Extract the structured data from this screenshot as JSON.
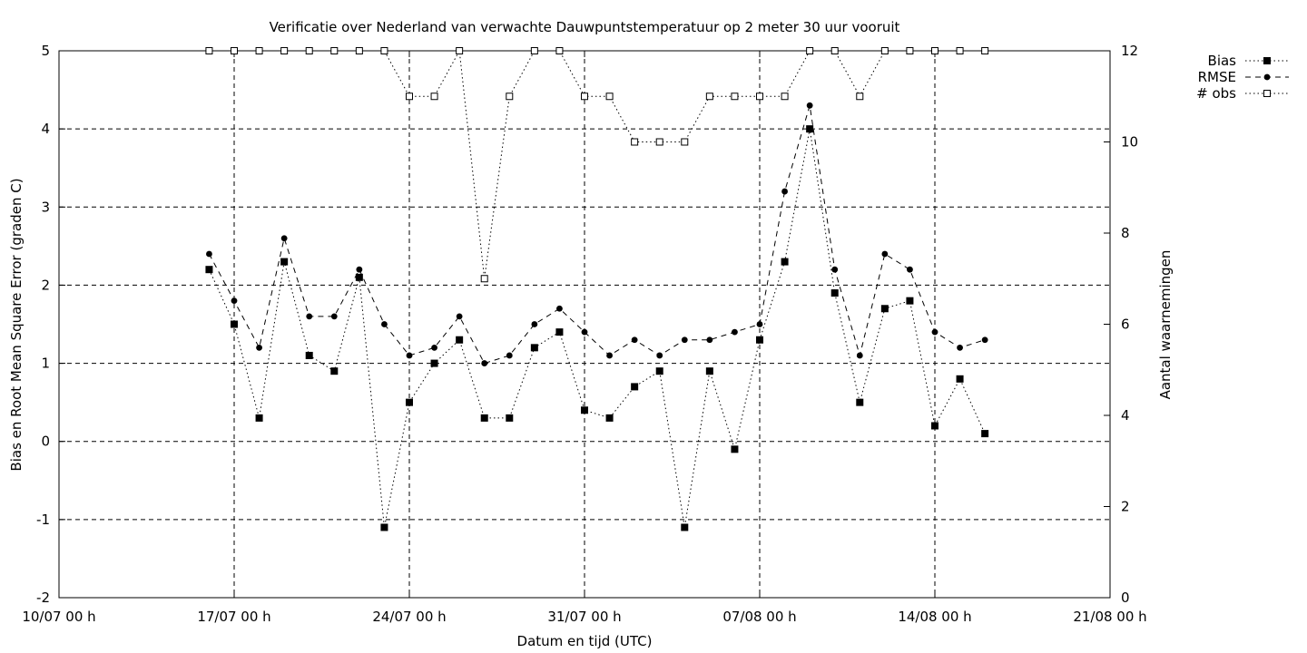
{
  "chart_data": {
    "type": "line",
    "title": "Verificatie over Nederland van verwachte Dauwpuntstemperatuur op 2 meter 30 uur vooruit",
    "xlabel": "Datum en tijd (UTC)",
    "ylabel": "Bias en Root Mean Square Error (graden C)",
    "y2label": "Aantal waarnemingen",
    "xlim": [
      "2008-07-10",
      "2008-08-21"
    ],
    "ylim": [
      -2,
      5
    ],
    "y2lim": [
      0,
      12
    ],
    "x_ticks": [
      "10/07 00 h",
      "17/07 00 h",
      "24/07 00 h",
      "31/07 00 h",
      "07/08 00 h",
      "14/08 00 h",
      "21/08 00 h"
    ],
    "y_ticks": [
      "-2",
      "-1",
      "0",
      "1",
      "2",
      "3",
      "4",
      "5"
    ],
    "y2_ticks": [
      "0",
      "2",
      "4",
      "6",
      "8",
      "10",
      "12"
    ],
    "grid": true,
    "legend_position": "top-right-outside",
    "x": [
      "2008-07-16",
      "2008-07-17",
      "2008-07-18",
      "2008-07-19",
      "2008-07-20",
      "2008-07-21",
      "2008-07-22",
      "2008-07-23",
      "2008-07-24",
      "2008-07-25",
      "2008-07-26",
      "2008-07-27",
      "2008-07-28",
      "2008-07-29",
      "2008-07-30",
      "2008-07-31",
      "2008-08-01",
      "2008-08-02",
      "2008-08-03",
      "2008-08-04",
      "2008-08-05",
      "2008-08-06",
      "2008-08-07",
      "2008-08-08",
      "2008-08-09",
      "2008-08-10",
      "2008-08-11",
      "2008-08-12",
      "2008-08-13",
      "2008-08-14",
      "2008-08-15",
      "2008-08-16"
    ],
    "series": [
      {
        "name": "Bias",
        "axis": "left",
        "values": [
          2.2,
          1.5,
          0.3,
          2.3,
          1.1,
          0.9,
          2.1,
          -1.1,
          0.5,
          1.0,
          1.3,
          0.3,
          0.3,
          1.2,
          1.4,
          0.4,
          0.3,
          0.7,
          0.9,
          -1.1,
          0.9,
          -0.1,
          1.3,
          2.3,
          4.0,
          1.9,
          0.5,
          1.7,
          1.8,
          0.2,
          0.8,
          0.1
        ]
      },
      {
        "name": "RMSE",
        "axis": "left",
        "values": [
          2.4,
          1.8,
          1.2,
          2.6,
          1.6,
          1.6,
          2.2,
          1.5,
          1.1,
          1.2,
          1.6,
          1.0,
          1.1,
          1.5,
          1.7,
          1.4,
          1.1,
          1.3,
          1.1,
          1.3,
          1.3,
          1.4,
          1.5,
          3.2,
          4.3,
          2.2,
          1.1,
          2.4,
          2.2,
          1.4,
          1.2,
          1.3
        ]
      },
      {
        "name": "# obs",
        "axis": "right",
        "values": [
          12,
          12,
          12,
          12,
          12,
          12,
          12,
          12,
          11,
          11,
          12,
          7,
          11,
          12,
          12,
          11,
          11,
          10,
          10,
          10,
          11,
          11,
          11,
          11,
          12,
          12,
          11,
          12,
          12,
          12,
          12,
          12
        ]
      }
    ]
  }
}
